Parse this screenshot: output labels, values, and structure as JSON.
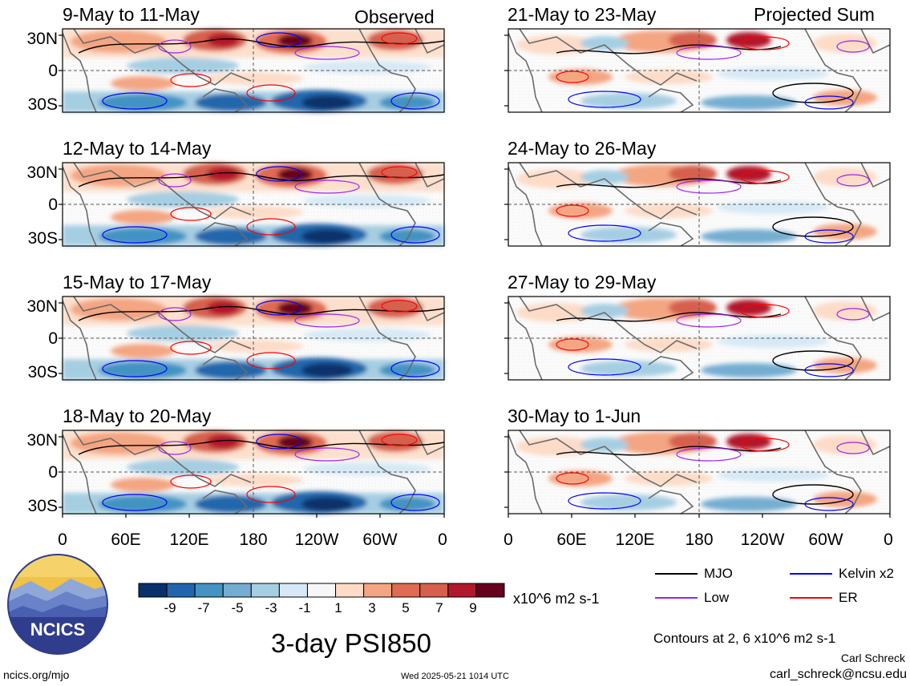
{
  "header": {
    "observed_label": "Observed",
    "projected_label": "Projected Sum"
  },
  "observed_panels": [
    {
      "title": "9-May to 11-May"
    },
    {
      "title": "12-May to 14-May"
    },
    {
      "title": "15-May to 17-May"
    },
    {
      "title": "18-May to 20-May"
    }
  ],
  "projected_panels": [
    {
      "title": "21-May to 23-May"
    },
    {
      "title": "24-May to 26-May"
    },
    {
      "title": "27-May to 29-May"
    },
    {
      "title": "30-May to 1-Jun"
    }
  ],
  "lat_labels": [
    "30N",
    "0",
    "30S"
  ],
  "lon_labels": [
    "0",
    "60E",
    "120E",
    "180",
    "120W",
    "60W",
    "0"
  ],
  "colorbar": {
    "labels": [
      "-9",
      "-7",
      "-5",
      "-3",
      "-1",
      "1",
      "3",
      "5",
      "7",
      "9"
    ],
    "units": "x10^6 m2 s-1",
    "colors": [
      "#08306b",
      "#2166ac",
      "#4393c3",
      "#74add1",
      "#a6cee3",
      "#d6e9f5",
      "#f7f7f7",
      "#fddbc7",
      "#f4a582",
      "#e06a52",
      "#d6604d",
      "#b2182b",
      "#67001f"
    ]
  },
  "legend": {
    "items": [
      {
        "label": "MJO",
        "color": "#000000"
      },
      {
        "label": "Kelvin x2",
        "color": "#0000ff"
      },
      {
        "label": "Low",
        "color": "#a020f0"
      },
      {
        "label": "ER",
        "color": "#ff0000"
      }
    ],
    "contours_note": "Contours at 2, 6 x10^6 m2 s-1"
  },
  "footer": {
    "main_title": "3-day PSI850",
    "logo_text": "NCICS",
    "url": "ncics.org/mjo",
    "timestamp": "Wed 2025-05-21 1014 UTC",
    "author": "Carl Schreck",
    "email": "carl_schreck@ncsu.edu"
  }
}
